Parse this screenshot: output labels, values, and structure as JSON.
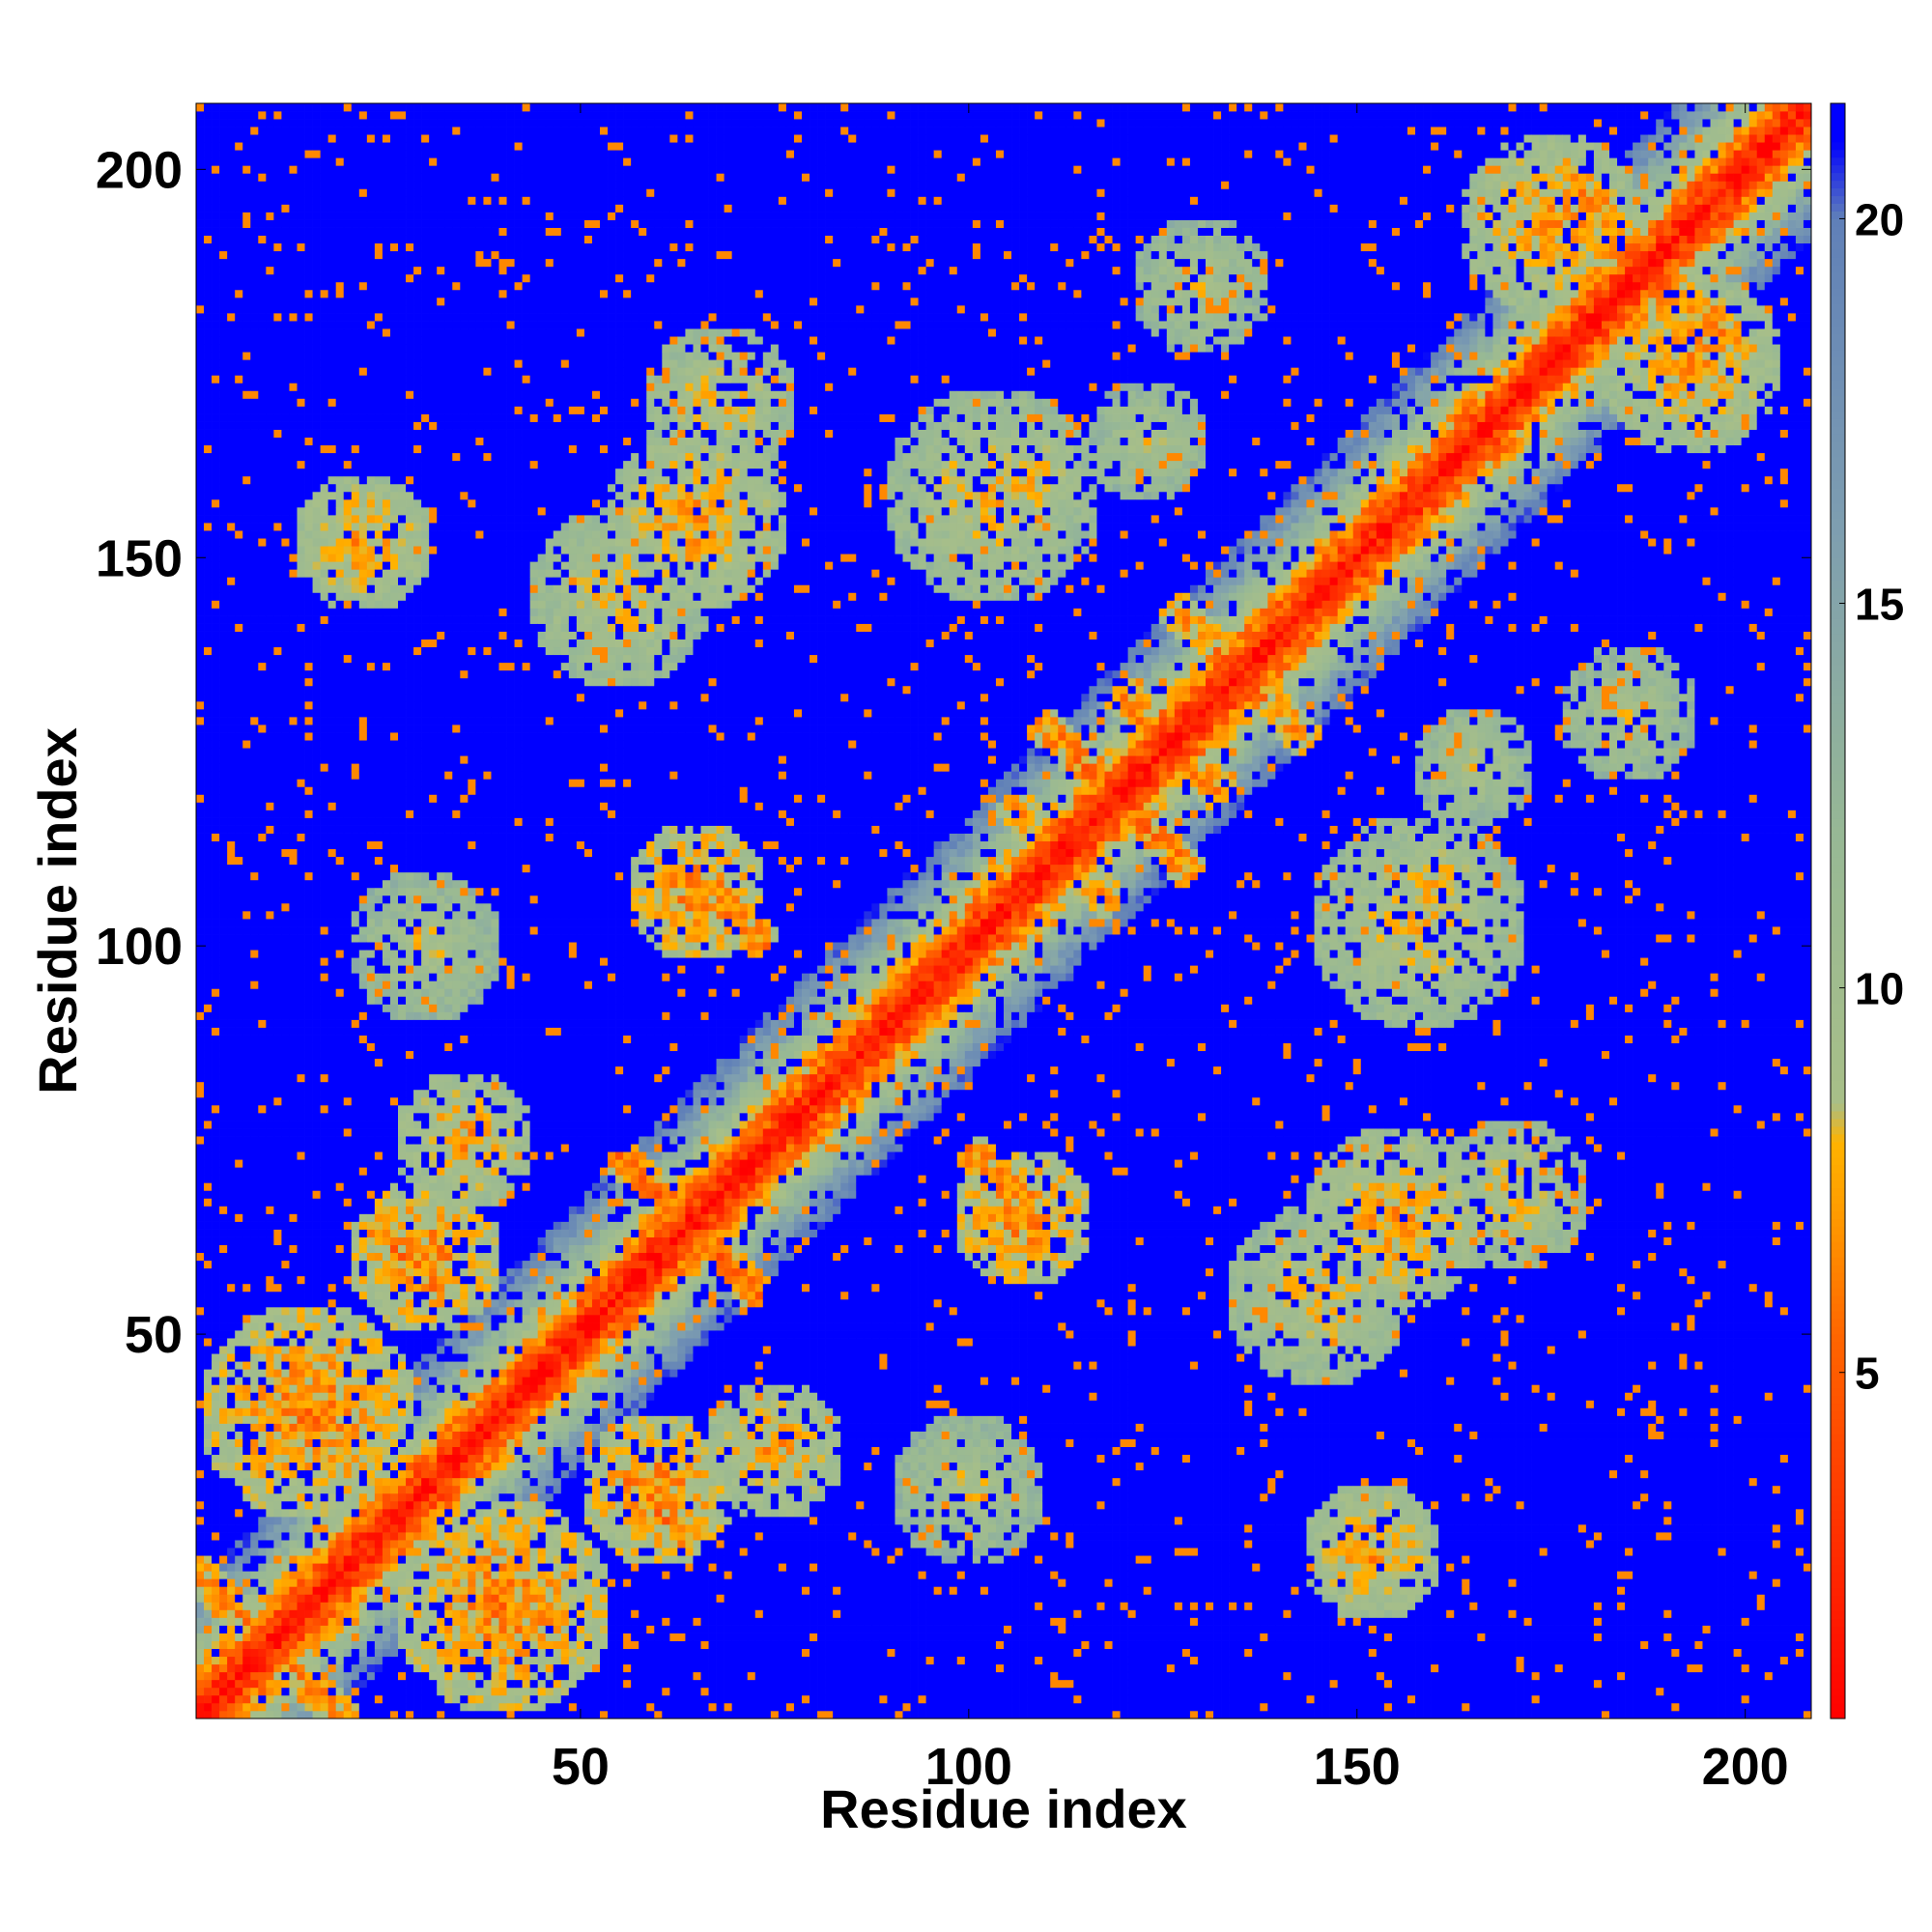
{
  "chart_data": {
    "type": "heatmap",
    "title": "",
    "xlabel": "Residue index",
    "ylabel": "Residue index",
    "xlim": [
      1,
      208
    ],
    "ylim": [
      1,
      208
    ],
    "n_residues": 208,
    "x_ticks": [
      50,
      100,
      150,
      200
    ],
    "y_ticks": [
      50,
      100,
      150,
      200
    ],
    "colorbar": {
      "range": [
        0.5,
        21.5
      ],
      "ticks": [
        5,
        10,
        15,
        20
      ],
      "stops": [
        {
          "value": 0.5,
          "color": "#ff0000"
        },
        {
          "value": 3.0,
          "color": "#ff3300"
        },
        {
          "value": 5.5,
          "color": "#ff6600"
        },
        {
          "value": 7.0,
          "color": "#ff9900"
        },
        {
          "value": 8.0,
          "color": "#ffb300"
        },
        {
          "value": 8.5,
          "color": "#a8bf88"
        },
        {
          "value": 12.0,
          "color": "#97b895"
        },
        {
          "value": 16.0,
          "color": "#7e9eb0"
        },
        {
          "value": 20.0,
          "color": "#6080b8"
        },
        {
          "value": 21.0,
          "color": "#0000ff"
        }
      ],
      "over_color": "#0000ff"
    },
    "diagonal_band": {
      "center": 1.0,
      "slope_per_offset": 1.15
    },
    "contact_features": [
      {
        "kind": "blob",
        "x": 22,
        "y": 152,
        "r": 9,
        "d": 11
      },
      {
        "kind": "blob",
        "x": 152,
        "y": 22,
        "r": 9,
        "d": 11
      },
      {
        "kind": "blob",
        "x": 55,
        "y": 145,
        "r": 12,
        "d": 12
      },
      {
        "kind": "blob",
        "x": 145,
        "y": 55,
        "r": 12,
        "d": 12
      },
      {
        "kind": "blob",
        "x": 68,
        "y": 170,
        "r": 10,
        "d": 12
      },
      {
        "kind": "blob",
        "x": 170,
        "y": 68,
        "r": 10,
        "d": 12
      },
      {
        "kind": "blob",
        "x": 107,
        "y": 160,
        "r": 10,
        "d": 12
      },
      {
        "kind": "blob",
        "x": 160,
        "y": 107,
        "r": 10,
        "d": 12
      },
      {
        "kind": "blob",
        "x": 107,
        "y": 65,
        "r": 9,
        "d": 10
      },
      {
        "kind": "blob",
        "x": 65,
        "y": 107,
        "r": 9,
        "d": 10
      },
      {
        "kind": "blob",
        "x": 30,
        "y": 100,
        "r": 10,
        "d": 13
      },
      {
        "kind": "blob",
        "x": 100,
        "y": 30,
        "r": 10,
        "d": 13
      },
      {
        "kind": "blob",
        "x": 193,
        "y": 175,
        "r": 12,
        "d": 11
      },
      {
        "kind": "blob",
        "x": 175,
        "y": 193,
        "r": 12,
        "d": 11
      },
      {
        "kind": "blob",
        "x": 185,
        "y": 130,
        "r": 9,
        "d": 13
      },
      {
        "kind": "blob",
        "x": 130,
        "y": 185,
        "r": 9,
        "d": 13
      },
      {
        "kind": "blob",
        "x": 158,
        "y": 103,
        "r": 14,
        "d": 12
      },
      {
        "kind": "blob",
        "x": 103,
        "y": 158,
        "r": 14,
        "d": 12
      },
      {
        "kind": "blob",
        "x": 155,
        "y": 65,
        "r": 12,
        "d": 11
      },
      {
        "kind": "blob",
        "x": 65,
        "y": 155,
        "r": 12,
        "d": 11
      },
      {
        "kind": "blob",
        "x": 40,
        "y": 15,
        "r": 14,
        "d": 10
      },
      {
        "kind": "blob",
        "x": 15,
        "y": 40,
        "r": 14,
        "d": 10
      },
      {
        "kind": "blob",
        "x": 60,
        "y": 30,
        "r": 10,
        "d": 10
      },
      {
        "kind": "blob",
        "x": 30,
        "y": 60,
        "r": 10,
        "d": 10
      },
      {
        "kind": "blob",
        "x": 75,
        "y": 35,
        "r": 9,
        "d": 11
      },
      {
        "kind": "blob",
        "x": 35,
        "y": 75,
        "r": 9,
        "d": 11
      },
      {
        "kind": "blob",
        "x": 123,
        "y": 165,
        "r": 8,
        "d": 13
      },
      {
        "kind": "blob",
        "x": 165,
        "y": 123,
        "r": 8,
        "d": 13
      },
      {
        "kind": "anti",
        "cx": 64,
        "cy": 64,
        "len": 9,
        "d": 5
      },
      {
        "kind": "anti",
        "cx": 27,
        "cy": 60,
        "len": 4,
        "d": 6
      },
      {
        "kind": "anti",
        "cx": 60,
        "cy": 27,
        "len": 4,
        "d": 6
      },
      {
        "kind": "anti",
        "cx": 119,
        "cy": 119,
        "len": 10,
        "d": 5
      },
      {
        "kind": "anti",
        "cx": 112,
        "cy": 112,
        "len": 7,
        "d": 6
      },
      {
        "kind": "anti",
        "cx": 126,
        "cy": 126,
        "len": 7,
        "d": 6
      },
      {
        "kind": "anti",
        "cx": 135,
        "cy": 135,
        "len": 9,
        "d": 6
      },
      {
        "kind": "anti",
        "cx": 186,
        "cy": 186,
        "len": 9,
        "d": 6
      },
      {
        "kind": "anti",
        "cx": 180,
        "cy": 196,
        "len": 4,
        "d": 6
      },
      {
        "kind": "anti",
        "cx": 196,
        "cy": 180,
        "len": 4,
        "d": 6
      },
      {
        "kind": "anti",
        "cx": 70,
        "cy": 104,
        "len": 4,
        "d": 6
      },
      {
        "kind": "anti",
        "cx": 104,
        "cy": 70,
        "len": 4,
        "d": 6
      },
      {
        "kind": "anti",
        "cx": 15,
        "cy": 5,
        "len": 6,
        "d": 6
      },
      {
        "kind": "anti",
        "cx": 5,
        "cy": 15,
        "len": 6,
        "d": 6
      }
    ]
  }
}
